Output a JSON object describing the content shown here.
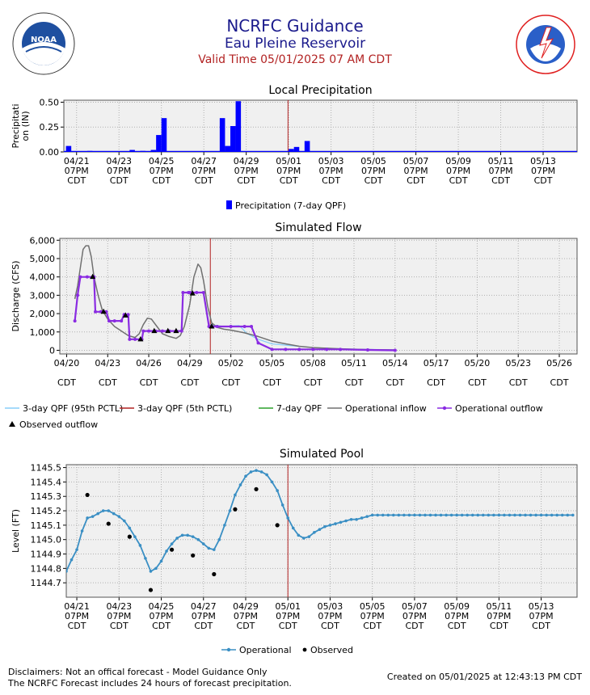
{
  "header": {
    "title": "NCRFC Guidance",
    "subtitle": "Eau Pleine Reservoir",
    "valid_time": "Valid Time 05/01/2025 07 AM CDT",
    "logo_left_text": "NOAA",
    "logo_left_ring": "NATIONAL OCEANIC AND ATMOSPHERIC ADMINISTRATION · U.S. DEPARTMENT OF COMMERCE ·",
    "logo_right_ring": "NATIONAL WEATHER SERVICE"
  },
  "footer": {
    "disclaimer1": "Disclaimers: Not an offical forecast - Model Guidance Only",
    "disclaimer2": "The NCRFC Forecast includes 24 hours of forecast precipitation.",
    "created": "Created on 05/01/2025 at 12:43:13 PM CDT"
  },
  "colors": {
    "plot_bg": "#f0f0f0",
    "grid": "#b0b0b0",
    "precip": "#0000ff",
    "valid_line": "#b22222",
    "inflow": "#707070",
    "outflow": "#8a2be2",
    "pct95": "#87cefa",
    "pct5": "#b22222",
    "qpf7": "#2ca02c",
    "pool": "#3a8fc4",
    "observed": "#000000"
  },
  "chart_data": [
    {
      "id": "precip",
      "type": "bar",
      "title": "Local Precipitation",
      "ylabel": "Precipitation (IN)",
      "ylabel_lines": [
        "Precipitati",
        "on (IN)"
      ],
      "ylim": [
        0,
        0.52
      ],
      "yticks": [
        0.0,
        0.25,
        0.5
      ],
      "ytick_labels": [
        "0.00",
        "0.25",
        "0.50"
      ],
      "xlim": [
        -0.6,
        23.6
      ],
      "xticks": [
        0,
        2,
        4,
        6,
        8,
        10,
        12,
        14,
        16,
        18,
        20,
        22
      ],
      "xtick_labels": [
        "04/21\n07PM\nCDT",
        "04/23\n07PM\nCDT",
        "04/25\n07PM\nCDT",
        "04/27\n07PM\nCDT",
        "04/29\n07PM\nCDT",
        "05/01\n07PM\nCDT",
        "05/03\n07PM\nCDT",
        "05/05\n07PM\nCDT",
        "05/07\n07PM\nCDT",
        "05/09\n07PM\nCDT",
        "05/11\n07PM\nCDT",
        "05/13\n07PM\nCDT"
      ],
      "valid_x": 9.97,
      "bar_width_days": 0.25,
      "x": [
        -0.5,
        0.5,
        2.5,
        3.0,
        3.5,
        3.75,
        4.0,
        6.75,
        7.0,
        7.25,
        7.5,
        10.0,
        10.25,
        10.75
      ],
      "values": [
        0.06,
        0.01,
        0.02,
        0.01,
        0.02,
        0.17,
        0.34,
        0.34,
        0.06,
        0.26,
        0.51,
        0.03,
        0.05,
        0.11
      ],
      "baseline_value": 0.01,
      "legend": [
        "Precipitation (7-day QPF)"
      ]
    },
    {
      "id": "flow",
      "type": "line",
      "title": "Simulated Flow",
      "ylabel": "Discharge (CFS)",
      "ylim": [
        -200,
        6100
      ],
      "yticks": [
        0,
        1000,
        2000,
        3000,
        4000,
        5000,
        6000
      ],
      "ytick_labels": [
        "0",
        "1,000",
        "2,000",
        "3,000",
        "4,000",
        "5,000",
        "6,000"
      ],
      "xlim": [
        -0.5,
        37.3
      ],
      "xticks": [
        0,
        3,
        6,
        9,
        12,
        15,
        18,
        21,
        24,
        27,
        30,
        33,
        36
      ],
      "xtick_labels": [
        "04/20\n\nCDT",
        "04/23\n\nCDT",
        "04/26\n\nCDT",
        "04/29\n\nCDT",
        "05/02\n\nCDT",
        "05/05\n\nCDT",
        "05/08\n\nCDT",
        "05/11\n\nCDT",
        "05/14\n\nCDT",
        "05/17\n\nCDT",
        "05/20\n\nCDT",
        "05/23\n\nCDT",
        "05/26\n\nCDT"
      ],
      "valid_x": 10.5,
      "series": [
        {
          "name": "3-day QPF (95th PCTL)",
          "color_key": "pct95",
          "x": [
            10.5,
            11.5,
            12.0,
            12.6,
            13.2,
            14.0,
            15.0,
            16.0,
            18.0,
            20.0,
            22.0,
            24.0
          ],
          "values": [
            1400,
            1300,
            1320,
            1350,
            900,
            600,
            350,
            280,
            150,
            80,
            50,
            30
          ]
        },
        {
          "name": "3-day QPF (5th PCTL)",
          "color_key": "pct5",
          "x": [],
          "values": []
        },
        {
          "name": "7-day QPF",
          "color_key": "qpf7",
          "x": [],
          "values": []
        },
        {
          "name": "Operational inflow",
          "color_key": "inflow",
          "x": [
            0.6,
            0.8,
            1.0,
            1.2,
            1.4,
            1.6,
            1.8,
            2.0,
            2.3,
            2.6,
            3.0,
            3.5,
            4.0,
            4.5,
            5.0,
            5.3,
            5.6,
            5.9,
            6.2,
            6.6,
            7.0,
            7.5,
            8.0,
            8.3,
            8.6,
            9.0,
            9.3,
            9.6,
            9.8,
            10.0,
            10.3,
            10.6,
            11.0,
            11.5,
            12.0,
            13.0,
            14.0,
            15.0,
            16.0,
            17.0,
            18.0,
            20.0,
            22.0,
            24.0
          ],
          "values": [
            2800,
            3500,
            4500,
            5500,
            5700,
            5700,
            5100,
            4000,
            3000,
            2200,
            1700,
            1300,
            1050,
            800,
            700,
            900,
            1400,
            1750,
            1700,
            1300,
            900,
            750,
            650,
            800,
            1300,
            2500,
            4000,
            4700,
            4500,
            3800,
            2400,
            1500,
            1250,
            1150,
            1100,
            950,
            750,
            500,
            350,
            220,
            150,
            80,
            40,
            20
          ]
        },
        {
          "name": "Operational outflow",
          "color_key": "outflow",
          "x": [
            0.6,
            0.8,
            1.0,
            1.5,
            2.0,
            2.1,
            2.5,
            2.9,
            3.1,
            3.5,
            4.0,
            4.2,
            4.5,
            4.6,
            5.0,
            5.5,
            5.6,
            6.0,
            6.5,
            7.0,
            7.5,
            8.0,
            8.4,
            8.5,
            8.9,
            9.0,
            9.5,
            10.0,
            10.4,
            10.6,
            11.0,
            12.0,
            13.0,
            13.5,
            14.0,
            15.0,
            16.0,
            17.0,
            18.0,
            19.0,
            20.0,
            22.0,
            24.0
          ],
          "values": [
            1600,
            3000,
            4000,
            4000,
            4000,
            2100,
            2100,
            2100,
            1600,
            1600,
            1600,
            1950,
            1950,
            600,
            600,
            600,
            1050,
            1050,
            1050,
            1050,
            1050,
            1050,
            1050,
            3150,
            3150,
            3150,
            3150,
            3150,
            1300,
            1300,
            1300,
            1300,
            1300,
            1300,
            400,
            50,
            50,
            50,
            50,
            50,
            50,
            20,
            0
          ]
        },
        {
          "name": "Observed outflow",
          "color_key": "observed",
          "x": [
            1.9,
            2.7,
            4.3,
            5.4,
            6.4,
            7.4,
            8.0,
            9.2,
            10.6
          ],
          "values": [
            4000,
            2100,
            1900,
            600,
            1050,
            1050,
            1050,
            3100,
            1300
          ]
        }
      ],
      "legend": [
        "3-day QPF (95th PCTL)",
        "3-day QPF (5th PCTL)",
        "7-day QPF",
        "Operational inflow",
        "Operational outflow",
        "Observed outflow"
      ]
    },
    {
      "id": "pool",
      "type": "line",
      "title": "Simulated Pool",
      "ylabel": "Level (FT)",
      "ylim": [
        1144.6,
        1145.52
      ],
      "yticks": [
        1144.7,
        1144.8,
        1144.9,
        1145.0,
        1145.1,
        1145.2,
        1145.3,
        1145.4,
        1145.5
      ],
      "ytick_labels": [
        "1144.7",
        "1144.8",
        "1144.9",
        "1145.0",
        "1145.1",
        "1145.2",
        "1145.3",
        "1145.4",
        "1145.5"
      ],
      "xlim": [
        -0.5,
        23.7
      ],
      "xticks": [
        0,
        2,
        4,
        6,
        8,
        10,
        12,
        14,
        16,
        18,
        20,
        22
      ],
      "xtick_labels": [
        "04/21\n07PM\nCDT",
        "04/23\n07PM\nCDT",
        "04/25\n07PM\nCDT",
        "04/27\n07PM\nCDT",
        "04/29\n07PM\nCDT",
        "05/01\n07PM\nCDT",
        "05/03\n07PM\nCDT",
        "05/05\n07PM\nCDT",
        "05/07\n07PM\nCDT",
        "05/09\n07PM\nCDT",
        "05/11\n07PM\nCDT",
        "05/13\n07PM\nCDT"
      ],
      "valid_x": 10.0,
      "series": [
        {
          "name": "Operational",
          "color_key": "pool",
          "x": [
            -0.5,
            -0.25,
            0.0,
            0.25,
            0.5,
            0.75,
            1.0,
            1.25,
            1.5,
            1.75,
            2.0,
            2.25,
            2.5,
            2.75,
            3.0,
            3.25,
            3.5,
            3.75,
            4.0,
            4.25,
            4.5,
            4.75,
            5.0,
            5.25,
            5.5,
            5.75,
            6.0,
            6.25,
            6.5,
            6.75,
            7.0,
            7.25,
            7.5,
            7.75,
            8.0,
            8.25,
            8.5,
            8.75,
            9.0,
            9.25,
            9.5,
            9.75,
            10.0,
            10.25,
            10.5,
            10.75,
            11.0,
            11.25,
            11.5,
            11.75,
            12.0,
            12.25,
            12.5,
            12.75,
            13.0,
            13.25,
            13.5,
            13.75,
            14.0,
            14.25,
            14.5,
            14.75,
            15.0,
            15.25,
            15.5,
            15.75,
            16.0,
            16.25,
            16.5,
            16.75,
            17.0,
            17.25,
            17.5,
            17.75,
            18.0,
            18.25,
            18.5,
            18.75,
            19.0,
            19.25,
            19.5,
            19.75,
            20.0,
            20.25,
            20.5,
            20.75,
            21.0,
            21.25,
            21.5,
            21.75,
            22.0,
            22.25,
            22.5,
            22.75,
            23.0,
            23.25,
            23.5
          ],
          "values": [
            1144.78,
            1144.86,
            1144.93,
            1145.06,
            1145.15,
            1145.16,
            1145.18,
            1145.2,
            1145.2,
            1145.18,
            1145.16,
            1145.13,
            1145.08,
            1145.02,
            1144.96,
            1144.87,
            1144.78,
            1144.8,
            1144.85,
            1144.92,
            1144.97,
            1145.01,
            1145.03,
            1145.03,
            1145.02,
            1145.0,
            1144.97,
            1144.94,
            1144.93,
            1145.0,
            1145.1,
            1145.2,
            1145.31,
            1145.38,
            1145.44,
            1145.47,
            1145.48,
            1145.47,
            1145.45,
            1145.4,
            1145.34,
            1145.24,
            1145.15,
            1145.08,
            1145.03,
            1145.01,
            1145.02,
            1145.05,
            1145.07,
            1145.09,
            1145.1,
            1145.11,
            1145.12,
            1145.13,
            1145.14,
            1145.14,
            1145.15,
            1145.16,
            1145.17,
            1145.17,
            1145.17,
            1145.17,
            1145.17,
            1145.17,
            1145.17,
            1145.17,
            1145.17,
            1145.17,
            1145.17,
            1145.17,
            1145.17,
            1145.17,
            1145.17,
            1145.17,
            1145.17,
            1145.17,
            1145.17,
            1145.17,
            1145.17,
            1145.17,
            1145.17,
            1145.17,
            1145.17,
            1145.17,
            1145.17,
            1145.17,
            1145.17,
            1145.17,
            1145.17,
            1145.17,
            1145.17,
            1145.17,
            1145.17,
            1145.17,
            1145.17,
            1145.17,
            1145.17
          ]
        },
        {
          "name": "Observed",
          "color_key": "observed",
          "x": [
            0.5,
            1.5,
            2.5,
            3.5,
            4.5,
            5.5,
            6.5,
            7.5,
            8.5,
            9.5
          ],
          "values": [
            1145.31,
            1145.11,
            1145.02,
            1144.65,
            1144.93,
            1144.89,
            1144.76,
            1145.21,
            1145.35,
            1145.1
          ]
        }
      ],
      "legend": [
        "Operational",
        "Observed"
      ]
    }
  ]
}
